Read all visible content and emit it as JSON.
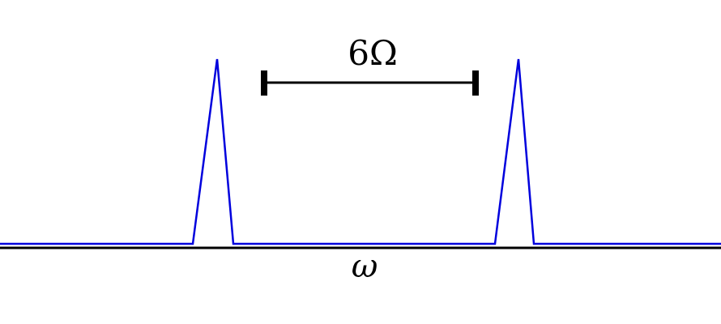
{
  "diagram": {
    "spacing_label": "6Ω",
    "axis_label": "ω",
    "colors": {
      "spectrum": "#0000dd",
      "axis": "#000000",
      "marker": "#000000",
      "background": "#ffffff"
    }
  }
}
